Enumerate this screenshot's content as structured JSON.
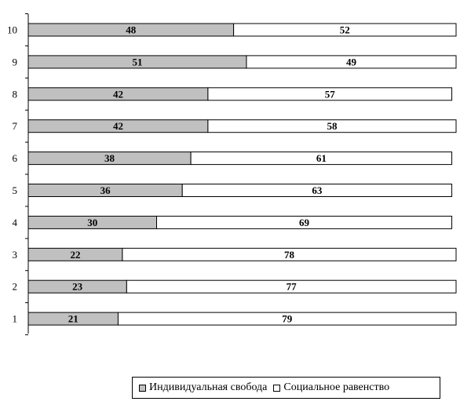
{
  "chart_data": {
    "type": "bar",
    "orientation": "horizontal",
    "stacked": true,
    "categories": [
      "10",
      "9",
      "8",
      "7",
      "6",
      "5",
      "4",
      "3",
      "2",
      "1"
    ],
    "series": [
      {
        "name": "Индивидуальная свобода",
        "values": [
          48,
          51,
          42,
          42,
          38,
          36,
          30,
          22,
          23,
          21
        ],
        "color": "#c0c0c0"
      },
      {
        "name": "Социальное равенство",
        "values": [
          52,
          49,
          57,
          58,
          61,
          63,
          69,
          78,
          77,
          79
        ],
        "color": "#ffffff"
      }
    ],
    "xlim": [
      0,
      100
    ],
    "grid": false,
    "legend_position": "bottom"
  }
}
